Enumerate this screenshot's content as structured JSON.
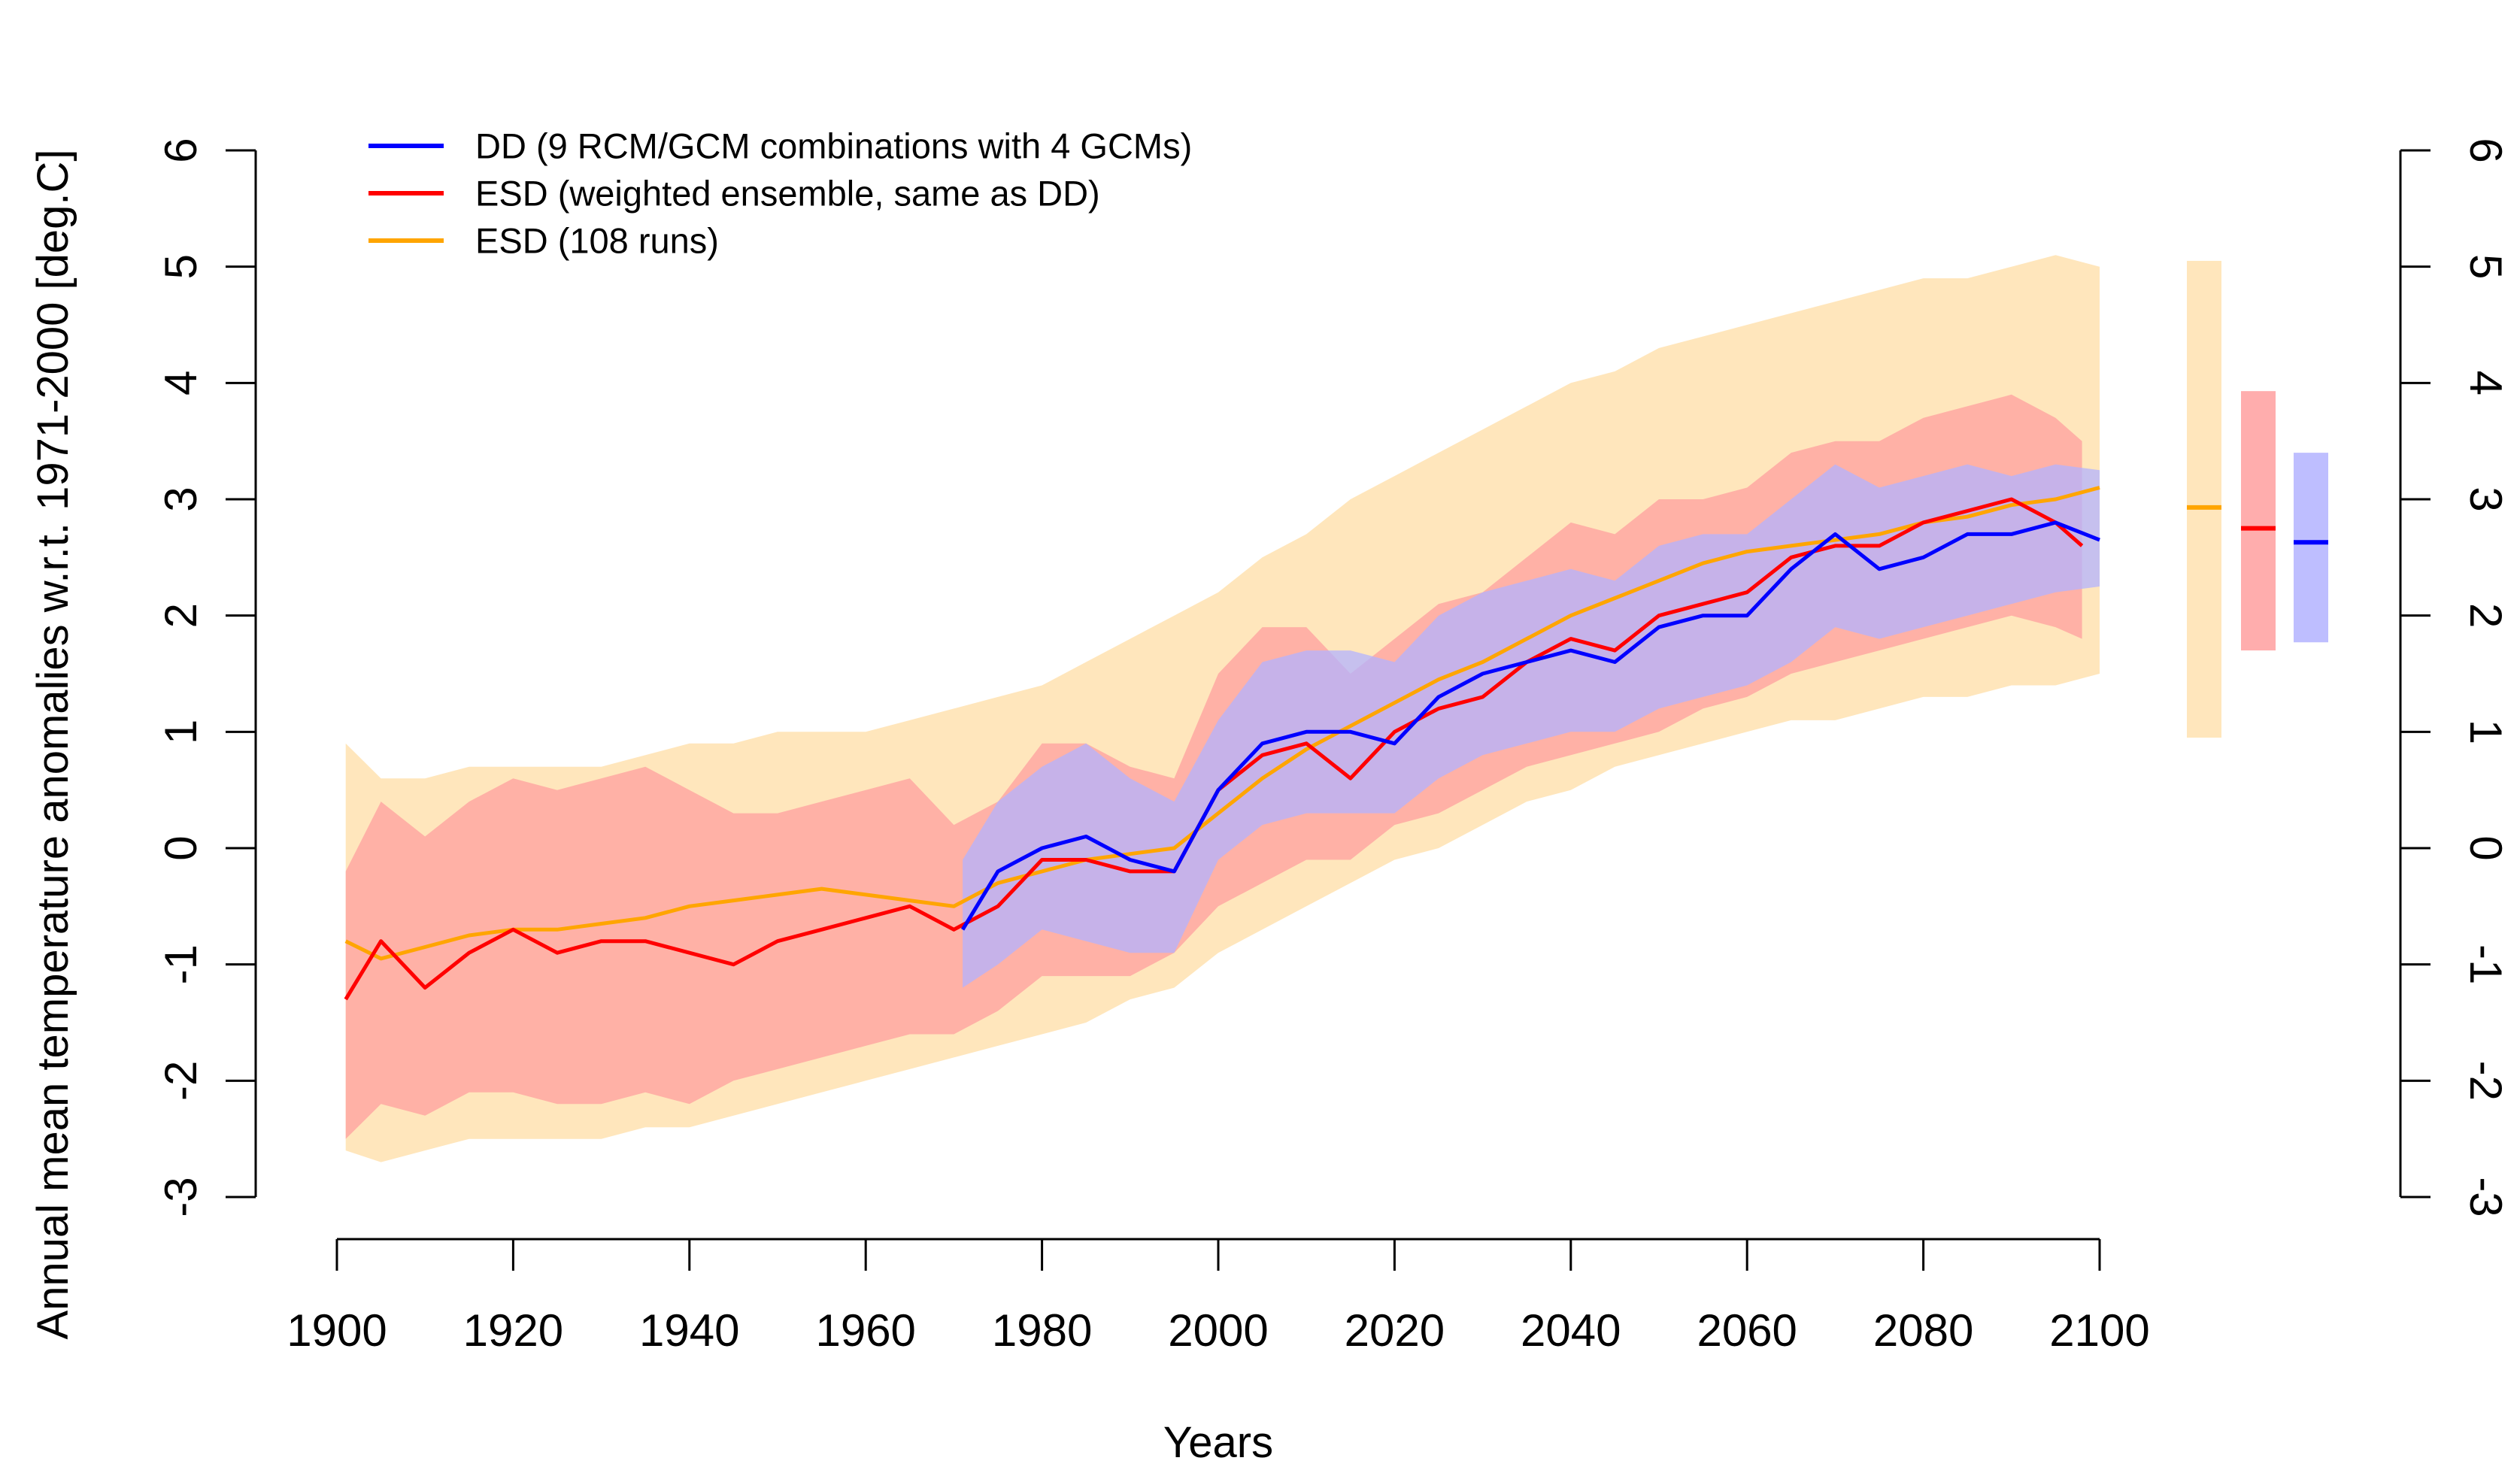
{
  "chart_data": {
    "type": "line",
    "title": "",
    "xlabel": "Years",
    "ylabel": "Annual mean temperature anomalies w.r.t. 1971-2000 [deg.C]",
    "xlim": [
      1900,
      2100
    ],
    "ylim": [
      -3,
      6
    ],
    "xticks": [
      1900,
      1920,
      1940,
      1960,
      1980,
      2000,
      2020,
      2040,
      2060,
      2080,
      2100
    ],
    "yticks": [
      -3,
      -2,
      -1,
      0,
      1,
      2,
      3,
      4,
      5,
      6
    ],
    "xtick_labels": [
      "1900",
      "1920",
      "1940",
      "1960",
      "1980",
      "2000",
      "2020",
      "2040",
      "2060",
      "2080",
      "2100"
    ],
    "ytick_labels": [
      "-3",
      "-2",
      "-1",
      "0",
      "1",
      "2",
      "3",
      "4",
      "5",
      "6"
    ],
    "legend_position": "top-left",
    "colors": {
      "dd": "#0000ff",
      "esd_weighted": "#ff0000",
      "esd_runs": "#ffa500",
      "dd_band": "#b3b3ff",
      "esd_weighted_band": "#ff9f9f",
      "esd_runs_band": "#ffe2b0"
    },
    "series": [
      {
        "name": "DD (9 RCM/GCM combinations with 4 GCMs)",
        "key": "dd",
        "x": [
          1971,
          1975,
          1980,
          1985,
          1990,
          1995,
          2000,
          2005,
          2010,
          2015,
          2020,
          2025,
          2030,
          2035,
          2040,
          2045,
          2050,
          2055,
          2060,
          2065,
          2070,
          2075,
          2080,
          2085,
          2090,
          2095,
          2100
        ],
        "values": [
          -0.7,
          -0.2,
          0.0,
          0.1,
          -0.1,
          -0.2,
          0.5,
          0.9,
          1.0,
          1.0,
          0.9,
          1.3,
          1.5,
          1.6,
          1.7,
          1.6,
          1.9,
          2.0,
          2.0,
          2.4,
          2.7,
          2.4,
          2.5,
          2.7,
          2.7,
          2.8,
          2.65
        ],
        "band_lower": [
          -1.2,
          -1.0,
          -0.7,
          -0.8,
          -0.9,
          -0.9,
          -0.1,
          0.2,
          0.3,
          0.3,
          0.3,
          0.6,
          0.8,
          0.9,
          1.0,
          1.0,
          1.2,
          1.3,
          1.4,
          1.6,
          1.9,
          1.8,
          1.9,
          2.0,
          2.1,
          2.2,
          2.25
        ],
        "band_upper": [
          -0.1,
          0.4,
          0.7,
          0.9,
          0.6,
          0.4,
          1.1,
          1.6,
          1.7,
          1.7,
          1.6,
          2.0,
          2.2,
          2.3,
          2.4,
          2.3,
          2.6,
          2.7,
          2.7,
          3.0,
          3.3,
          3.1,
          3.2,
          3.3,
          3.2,
          3.3,
          3.25
        ]
      },
      {
        "name": "ESD (weighted ensemble, same as DD)",
        "key": "esd_weighted",
        "x": [
          1901,
          1905,
          1910,
          1915,
          1920,
          1925,
          1930,
          1935,
          1940,
          1945,
          1950,
          1955,
          1960,
          1965,
          1970,
          1975,
          1980,
          1985,
          1990,
          1995,
          2000,
          2005,
          2010,
          2015,
          2020,
          2025,
          2030,
          2035,
          2040,
          2045,
          2050,
          2055,
          2060,
          2065,
          2070,
          2075,
          2080,
          2085,
          2090,
          2095,
          2098
        ],
        "values": [
          -1.3,
          -0.8,
          -1.2,
          -0.9,
          -0.7,
          -0.9,
          -0.8,
          -0.8,
          -0.9,
          -1.0,
          -0.8,
          -0.7,
          -0.6,
          -0.5,
          -0.7,
          -0.5,
          -0.1,
          -0.1,
          -0.2,
          -0.2,
          0.5,
          0.8,
          0.9,
          0.6,
          1.0,
          1.2,
          1.3,
          1.6,
          1.8,
          1.7,
          2.0,
          2.1,
          2.2,
          2.5,
          2.6,
          2.6,
          2.8,
          2.9,
          3.0,
          2.8,
          2.6
        ],
        "band_lower": [
          -2.5,
          -2.2,
          -2.3,
          -2.1,
          -2.1,
          -2.2,
          -2.2,
          -2.1,
          -2.2,
          -2.0,
          -1.9,
          -1.8,
          -1.7,
          -1.6,
          -1.6,
          -1.4,
          -1.1,
          -1.1,
          -1.1,
          -0.9,
          -0.5,
          -0.3,
          -0.1,
          -0.1,
          0.2,
          0.3,
          0.5,
          0.7,
          0.8,
          0.9,
          1.0,
          1.2,
          1.3,
          1.5,
          1.6,
          1.7,
          1.8,
          1.9,
          2.0,
          1.9,
          1.8
        ],
        "band_upper": [
          -0.2,
          0.4,
          0.1,
          0.4,
          0.6,
          0.5,
          0.6,
          0.7,
          0.5,
          0.3,
          0.3,
          0.4,
          0.5,
          0.6,
          0.2,
          0.4,
          0.9,
          0.9,
          0.7,
          0.6,
          1.5,
          1.9,
          1.9,
          1.5,
          1.8,
          2.1,
          2.2,
          2.5,
          2.8,
          2.7,
          3.0,
          3.0,
          3.1,
          3.4,
          3.5,
          3.5,
          3.7,
          3.8,
          3.9,
          3.7,
          3.5
        ]
      },
      {
        "name": "ESD (108 runs)",
        "key": "esd_runs",
        "x": [
          1901,
          1905,
          1910,
          1915,
          1920,
          1925,
          1930,
          1935,
          1940,
          1945,
          1950,
          1955,
          1960,
          1965,
          1970,
          1975,
          1980,
          1985,
          1990,
          1995,
          2000,
          2005,
          2010,
          2015,
          2020,
          2025,
          2030,
          2035,
          2040,
          2045,
          2050,
          2055,
          2060,
          2065,
          2070,
          2075,
          2080,
          2085,
          2090,
          2095,
          2100
        ],
        "values": [
          -0.8,
          -0.95,
          -0.85,
          -0.75,
          -0.7,
          -0.7,
          -0.65,
          -0.6,
          -0.5,
          -0.45,
          -0.4,
          -0.35,
          -0.4,
          -0.45,
          -0.5,
          -0.3,
          -0.2,
          -0.1,
          -0.05,
          0.0,
          0.3,
          0.6,
          0.85,
          1.05,
          1.25,
          1.45,
          1.6,
          1.8,
          2.0,
          2.15,
          2.3,
          2.45,
          2.55,
          2.6,
          2.65,
          2.7,
          2.8,
          2.85,
          2.95,
          3.0,
          3.1
        ],
        "band_lower": [
          -2.6,
          -2.7,
          -2.6,
          -2.5,
          -2.5,
          -2.5,
          -2.5,
          -2.4,
          -2.4,
          -2.3,
          -2.2,
          -2.1,
          -2.0,
          -1.9,
          -1.8,
          -1.7,
          -1.6,
          -1.5,
          -1.3,
          -1.2,
          -0.9,
          -0.7,
          -0.5,
          -0.3,
          -0.1,
          0.0,
          0.2,
          0.4,
          0.5,
          0.7,
          0.8,
          0.9,
          1.0,
          1.1,
          1.1,
          1.2,
          1.3,
          1.3,
          1.4,
          1.4,
          1.5
        ],
        "band_upper": [
          0.9,
          0.6,
          0.6,
          0.7,
          0.7,
          0.7,
          0.7,
          0.8,
          0.9,
          0.9,
          1.0,
          1.0,
          1.0,
          1.1,
          1.2,
          1.3,
          1.4,
          1.6,
          1.8,
          2.0,
          2.2,
          2.5,
          2.7,
          3.0,
          3.2,
          3.4,
          3.6,
          3.8,
          4.0,
          4.1,
          4.3,
          4.4,
          4.5,
          4.6,
          4.7,
          4.8,
          4.9,
          4.9,
          5.0,
          5.1,
          5.0
        ]
      }
    ],
    "side_bars": [
      {
        "key": "esd_runs",
        "lower": 0.95,
        "upper": 5.05,
        "median": 2.93
      },
      {
        "key": "esd_weighted",
        "lower": 1.7,
        "upper": 3.93,
        "median": 2.75
      },
      {
        "key": "dd",
        "lower": 1.77,
        "upper": 3.4,
        "median": 2.63
      }
    ]
  }
}
